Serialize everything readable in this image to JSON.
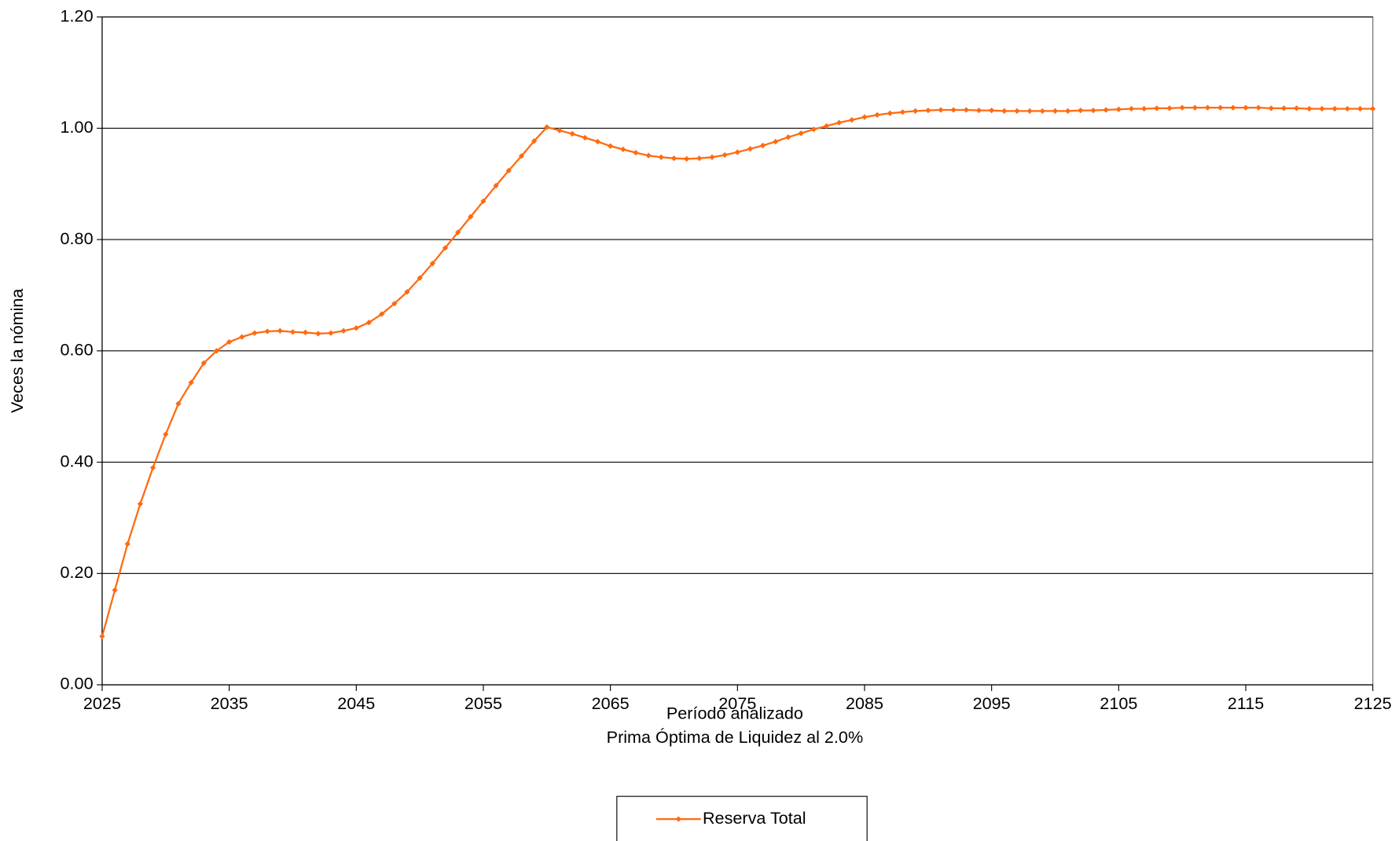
{
  "chart_data": {
    "type": "line",
    "x_label": "Período analizado",
    "subtitle": "Prima Óptima de Liquidez al 2.0%",
    "y_label": "Veces la nómina",
    "x": [
      2025,
      2026,
      2027,
      2028,
      2029,
      2030,
      2031,
      2032,
      2033,
      2034,
      2035,
      2036,
      2037,
      2038,
      2039,
      2040,
      2041,
      2042,
      2043,
      2044,
      2045,
      2046,
      2047,
      2048,
      2049,
      2050,
      2051,
      2052,
      2053,
      2054,
      2055,
      2056,
      2057,
      2058,
      2059,
      2060,
      2061,
      2062,
      2063,
      2064,
      2065,
      2066,
      2067,
      2068,
      2069,
      2070,
      2071,
      2072,
      2073,
      2074,
      2075,
      2076,
      2077,
      2078,
      2079,
      2080,
      2081,
      2082,
      2083,
      2084,
      2085,
      2086,
      2087,
      2088,
      2089,
      2090,
      2091,
      2092,
      2093,
      2094,
      2095,
      2096,
      2097,
      2098,
      2099,
      2100,
      2101,
      2102,
      2103,
      2104,
      2105,
      2106,
      2107,
      2108,
      2109,
      2110,
      2111,
      2112,
      2113,
      2114,
      2115,
      2116,
      2117,
      2118,
      2119,
      2120,
      2121,
      2122,
      2123,
      2124,
      2125
    ],
    "series": [
      {
        "name": "Reserva Total",
        "color": "#ff6a10",
        "values": [
          0.087,
          0.17,
          0.253,
          0.325,
          0.39,
          0.45,
          0.505,
          0.543,
          0.578,
          0.6,
          0.616,
          0.625,
          0.632,
          0.635,
          0.636,
          0.634,
          0.633,
          0.631,
          0.632,
          0.636,
          0.641,
          0.651,
          0.666,
          0.685,
          0.706,
          0.731,
          0.757,
          0.785,
          0.813,
          0.841,
          0.869,
          0.897,
          0.924,
          0.95,
          0.977,
          1.002,
          0.996,
          0.99,
          0.983,
          0.976,
          0.968,
          0.962,
          0.956,
          0.951,
          0.948,
          0.946,
          0.945,
          0.946,
          0.948,
          0.952,
          0.957,
          0.963,
          0.969,
          0.976,
          0.984,
          0.991,
          0.998,
          1.004,
          1.01,
          1.015,
          1.02,
          1.024,
          1.027,
          1.029,
          1.031,
          1.032,
          1.033,
          1.033,
          1.033,
          1.032,
          1.032,
          1.031,
          1.031,
          1.031,
          1.031,
          1.031,
          1.031,
          1.032,
          1.032,
          1.033,
          1.034,
          1.035,
          1.035,
          1.036,
          1.036,
          1.037,
          1.037,
          1.037,
          1.037,
          1.037,
          1.037,
          1.037,
          1.036,
          1.036,
          1.036,
          1.035,
          1.035,
          1.035,
          1.035,
          1.035,
          1.035
        ]
      }
    ],
    "xlim": [
      2025,
      2125
    ],
    "xticks": [
      2025,
      2035,
      2045,
      2055,
      2065,
      2075,
      2085,
      2095,
      2105,
      2115,
      2125
    ],
    "ylim": [
      0,
      1.2
    ],
    "yticks": [
      {
        "value": 0,
        "label": "0.00"
      },
      {
        "value": 0.2,
        "label": "0.20"
      },
      {
        "value": 0.4,
        "label": "0.40"
      },
      {
        "value": 0.6,
        "label": "0.60"
      },
      {
        "value": 0.8,
        "label": "0.80"
      },
      {
        "value": 1,
        "label": "1.00"
      },
      {
        "value": 1.2,
        "label": "1.20"
      }
    ],
    "grid": true,
    "legend": "bottom"
  }
}
